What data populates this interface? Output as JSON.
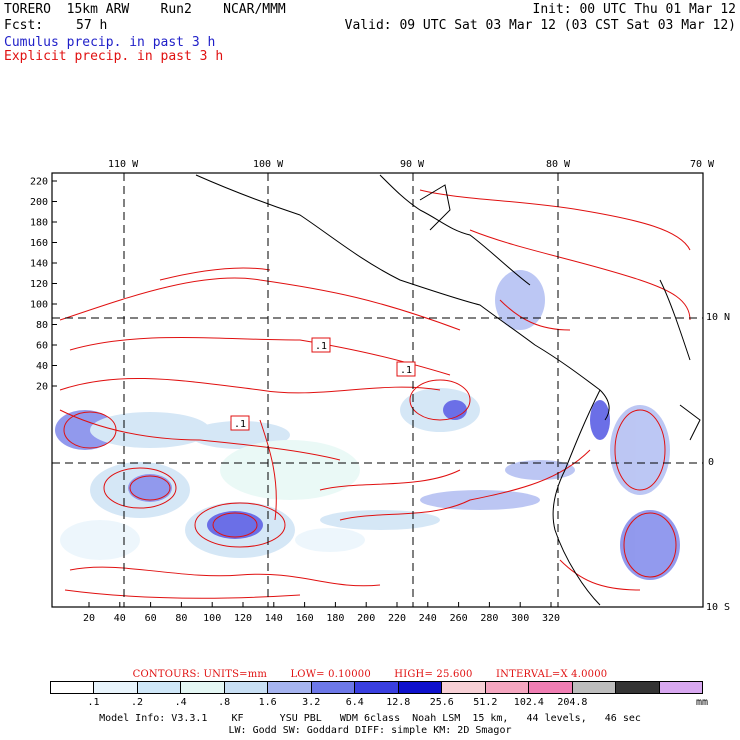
{
  "header": {
    "model": "TORERO  15km ARW    Run2    NCAR/MMM",
    "init": "Init: 00 UTC Thu 01 Mar 12",
    "fcst_label": "Fcst:",
    "fcst_value": "57 h",
    "valid": "Valid: 09 UTC Sat 03 Mar 12 (03 CST Sat 03 Mar 12)",
    "line_cumulus": "Cumulus precip. in past 3 h",
    "line_explicit": "Explicit precip. in past 3 h"
  },
  "colors": {
    "cumulus": "#1f1fc8",
    "explicit": "#e01010",
    "grid": "#000000",
    "coast": "#000000"
  },
  "map": {
    "top_lon_labels": [
      "110 W",
      "100 W",
      "90 W",
      "80 W",
      "70 W"
    ],
    "right_lat_labels": [
      "10 N",
      "0",
      "10 S"
    ],
    "y_ticks": [
      "220",
      "200",
      "180",
      "160",
      "140",
      "120",
      "100",
      "80",
      "60",
      "40",
      "20"
    ],
    "x_ticks": [
      "20",
      "40",
      "60",
      "80",
      "100",
      "120",
      "140",
      "160",
      "180",
      "200",
      "220",
      "240",
      "260",
      "280",
      "300",
      "320"
    ],
    "contour_labels": [
      ".1",
      ".1",
      ".1"
    ]
  },
  "footer": {
    "contours_label": "CONTOURS:  UNITS=mm",
    "low_label": "LOW= 0.10000",
    "high_label": "HIGH=  25.600",
    "interval_label": "INTERVAL=X  4.0000",
    "colorbar_colors": [
      "#ffffff",
      "#e8f4fc",
      "#cfe7f8",
      "#e4f7f4",
      "#c8dff4",
      "#a6b4f0",
      "#6d78e8",
      "#3a3fe0",
      "#0e10cc",
      "#f7d0d6",
      "#f5a6c0",
      "#f07eb3",
      "#bdbdbd",
      "#343434",
      "#d8a8f0"
    ],
    "colorbar_labels": [
      ".1",
      ".2",
      ".4",
      ".8",
      "1.6",
      "3.2",
      "6.4",
      "12.8",
      "25.6",
      "51.2",
      "102.4",
      "204.8"
    ],
    "units": "mm",
    "model_info_1": "Model Info: V3.3.1    KF      YSU PBL   WDM 6class  Noah LSM  15 km,   44 levels,   46 sec",
    "model_info_2": "LW: Godd SW: Goddard DIFF: simple KM: 2D Smagor"
  }
}
